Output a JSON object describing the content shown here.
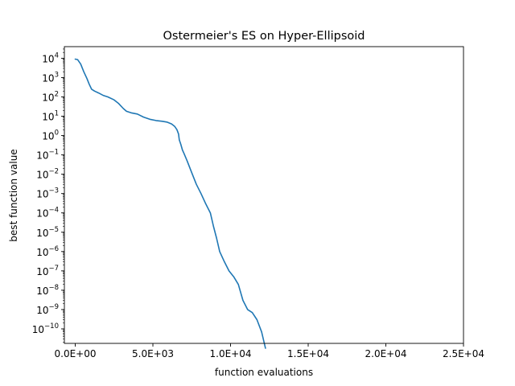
{
  "chart_data": {
    "type": "line",
    "title": "Ostermeier's ES on Hyper-Ellipsoid",
    "xlabel": "function evaluations",
    "ylabel": "best function value",
    "xlim": [
      -700,
      25000
    ],
    "ylim_log10": [
      -10.75,
      4.6
    ],
    "y_scale": "log",
    "grid": false,
    "x_ticks": [
      {
        "value": 0,
        "label": "0.0E+00"
      },
      {
        "value": 5000,
        "label": "5.0E+03"
      },
      {
        "value": 10000,
        "label": "1.0E+04"
      },
      {
        "value": 15000,
        "label": "1.5E+04"
      },
      {
        "value": 20000,
        "label": "2.0E+04"
      },
      {
        "value": 25000,
        "label": "2.5E+04"
      }
    ],
    "y_ticks": [
      {
        "exp": 4,
        "label": "10",
        "sup": "4"
      },
      {
        "exp": 3,
        "label": "10",
        "sup": "3"
      },
      {
        "exp": 2,
        "label": "10",
        "sup": "2"
      },
      {
        "exp": 1,
        "label": "10",
        "sup": "1"
      },
      {
        "exp": 0,
        "label": "10",
        "sup": "0"
      },
      {
        "exp": -1,
        "label": "10",
        "sup": "−1"
      },
      {
        "exp": -2,
        "label": "10",
        "sup": "−2"
      },
      {
        "exp": -3,
        "label": "10",
        "sup": "−3"
      },
      {
        "exp": -4,
        "label": "10",
        "sup": "−4"
      },
      {
        "exp": -5,
        "label": "10",
        "sup": "−5"
      },
      {
        "exp": -6,
        "label": "10",
        "sup": "−6"
      },
      {
        "exp": -7,
        "label": "10",
        "sup": "−7"
      },
      {
        "exp": -8,
        "label": "10",
        "sup": "−8"
      },
      {
        "exp": -9,
        "label": "10",
        "sup": "−9"
      },
      {
        "exp": -10,
        "label": "10",
        "sup": "−10"
      }
    ],
    "series": [
      {
        "color": "#1f77b4",
        "x": [
          0,
          150,
          350,
          550,
          750,
          900,
          1050,
          1250,
          1500,
          1800,
          2100,
          2500,
          2800,
          3100,
          3300,
          3600,
          4000,
          4400,
          4800,
          5200,
          5600,
          5900,
          6200,
          6400,
          6550,
          6650,
          6700,
          6800,
          6900,
          7000,
          7200,
          7500,
          7800,
          8100,
          8400,
          8700,
          8900,
          9100,
          9300,
          9600,
          9900,
          10200,
          10500,
          10800,
          11100,
          11400,
          11700,
          12000,
          12250
        ],
        "y": [
          9000,
          8500,
          5000,
          2000,
          900,
          450,
          250,
          200,
          160,
          120,
          100,
          70,
          45,
          25,
          18,
          15,
          13,
          9,
          7,
          6,
          5.5,
          5,
          4,
          3,
          2,
          1.2,
          0.6,
          0.35,
          0.18,
          0.12,
          0.05,
          0.012,
          0.003,
          0.001,
          0.0003,
          0.0001,
          2e-05,
          5e-06,
          1e-06,
          3e-07,
          1e-07,
          5e-08,
          2e-08,
          3e-09,
          1e-09,
          7e-10,
          3e-10,
          7e-11,
          1e-11
        ]
      }
    ]
  }
}
